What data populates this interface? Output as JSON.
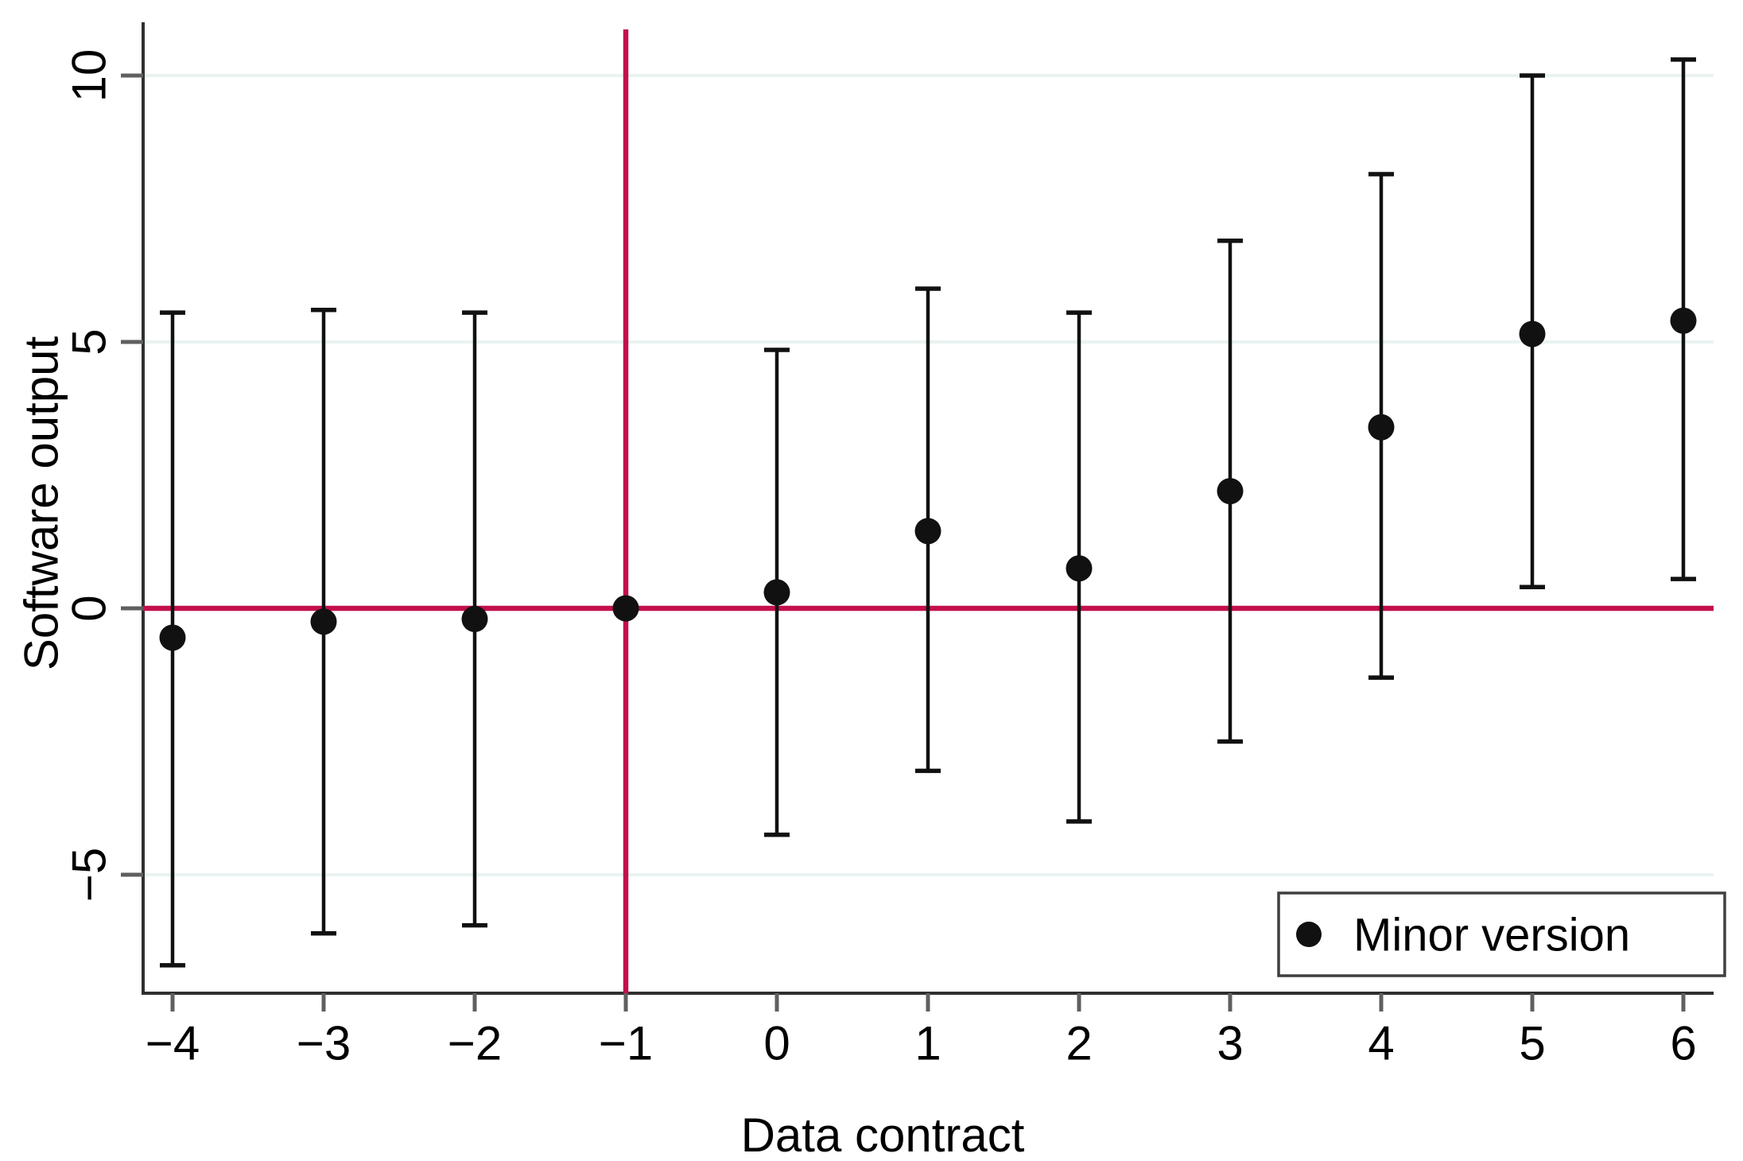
{
  "page": {
    "background": "#ffffff"
  },
  "colors": {
    "reference_line": "#C3104C",
    "grid_line": "#E9F3F2",
    "axis_line": "#2F2F2F",
    "tick": "#5F5F5F",
    "marker": "#111111",
    "error_bar": "#111111",
    "legend_border": "#3F3F3F",
    "text": "#000000"
  },
  "chart_data": {
    "type": "scatter",
    "subtype": "coefficient-plot-with-confidence-intervals",
    "title": "",
    "xlabel": "Data contract",
    "ylabel": "Software output",
    "grid": true,
    "x": [
      -4,
      -3,
      -2,
      -1,
      0,
      1,
      2,
      3,
      4,
      5,
      6
    ],
    "x_tick_labels": [
      "−4",
      "−3",
      "−2",
      "−1",
      "0",
      "1",
      "2",
      "3",
      "4",
      "5",
      "6"
    ],
    "y_ticks": [
      10,
      5,
      0,
      -5
    ],
    "y_tick_labels": [
      "10",
      "5",
      "0",
      "−5"
    ],
    "ylim": [
      -7.2,
      11.0
    ],
    "xlim": [
      -4.2,
      6.2
    ],
    "reference_line_x": -1,
    "reference_line_y": 0,
    "series": [
      {
        "name": "Minor version",
        "marker": "filled-circle",
        "estimates": [
          -0.55,
          -0.25,
          -0.2,
          0,
          0.3,
          1.45,
          0.75,
          2.2,
          3.4,
          5.15,
          5.4
        ],
        "ci_low": [
          -6.7,
          -6.1,
          -5.95,
          null,
          -4.25,
          -3.05,
          -4.0,
          -2.5,
          -1.3,
          0.4,
          0.55
        ],
        "ci_high": [
          5.55,
          5.6,
          5.55,
          null,
          4.85,
          6.0,
          5.55,
          6.9,
          8.15,
          10.0,
          10.3
        ]
      }
    ],
    "legend": {
      "position": "bottom-right",
      "entries": [
        {
          "marker": "filled-circle",
          "label": "Minor version"
        }
      ]
    }
  }
}
